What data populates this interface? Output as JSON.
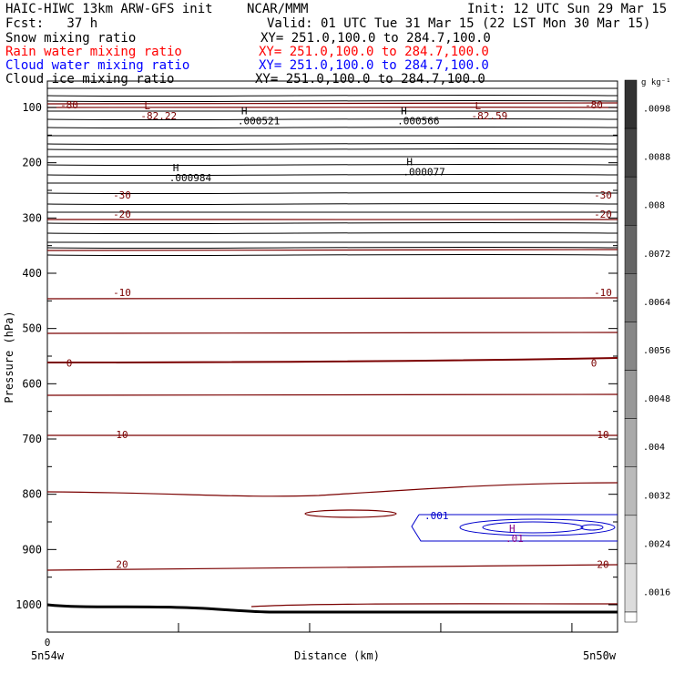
{
  "header": {
    "title": "HAIC-HIWC 13km ARW-GFS init",
    "org": "NCAR/MMM",
    "init": "Init: 12 UTC Sun 29 Mar 15",
    "fcst": "Fcst:   37 h",
    "valid": "Valid: 01 UTC Tue 31 Mar 15 (22 LST Mon 30 Mar 15)",
    "fields": [
      {
        "label": "Snow mixing ratio",
        "xy": "XY= 251.0,100.0 to 284.7,100.0",
        "color": "#000000"
      },
      {
        "label": "Rain water mixing ratio",
        "xy": "XY= 251.0,100.0 to 284.7,100.0",
        "color": "#ff0000"
      },
      {
        "label": "Cloud water mixing ratio",
        "xy": "XY= 251.0,100.0 to 284.7,100.0",
        "color": "#0000ff"
      },
      {
        "label": "Cloud ice mixing ratio",
        "xy": "XY= 251.0,100.0 to 284.7,100.0",
        "color": "#000000"
      }
    ]
  },
  "chart_data": {
    "type": "contour",
    "ylabel": "Pressure (hPa)",
    "xlabel": "Distance (km)",
    "x_tick_label": "0",
    "x_start_label": "5n54w",
    "x_end_label": "5n50w",
    "y_ticks": [
      100,
      200,
      300,
      400,
      500,
      600,
      700,
      800,
      900,
      1000
    ],
    "temperature_labels": [
      {
        "text": "-80",
        "p": 95,
        "side": "both"
      },
      {
        "text": "-30",
        "p": 258,
        "side": "both"
      },
      {
        "text": "-20",
        "p": 293,
        "side": "both"
      },
      {
        "text": "-10",
        "p": 435,
        "side": "both"
      },
      {
        "text": "0",
        "p": 562,
        "side": "both"
      },
      {
        "text": "10",
        "p": 692,
        "side": "both"
      },
      {
        "text": "20",
        "p": 927,
        "side": "both"
      }
    ],
    "extrema": [
      {
        "kind": "L",
        "value": "-82.22",
        "x_frac": 0.17,
        "p": 103
      },
      {
        "kind": "L",
        "value": "-82.59",
        "x_frac": 0.75,
        "p": 103
      },
      {
        "kind": "H",
        "value": ".000521",
        "x_frac": 0.34,
        "p": 112
      },
      {
        "kind": "H",
        "value": ".000566",
        "x_frac": 0.62,
        "p": 112
      },
      {
        "kind": "H",
        "value": ".000984",
        "x_frac": 0.22,
        "p": 215
      },
      {
        "kind": "H",
        "value": ".000077",
        "x_frac": 0.63,
        "p": 205
      },
      {
        "kind": "H",
        "value": ".01",
        "x_frac": 0.81,
        "p": 868
      }
    ],
    "cloud_water_label": ".001",
    "colorbar": {
      "unit": "g kg⁻¹",
      "labels": [
        ".0098",
        ".0088",
        ".008",
        ".0072",
        ".0064",
        ".0056",
        ".0048",
        ".004",
        ".0032",
        ".0024",
        ".0016"
      ]
    }
  }
}
